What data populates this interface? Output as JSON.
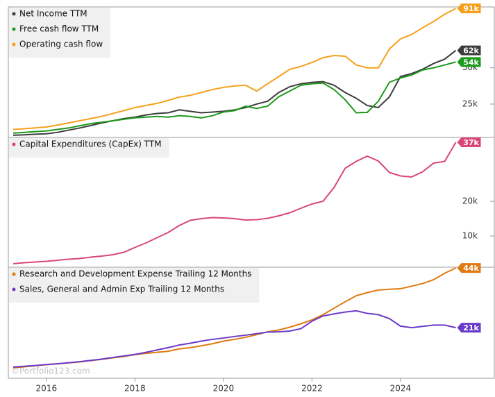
{
  "chart_data": [
    {
      "type": "line",
      "x": [
        2015.25,
        2015.5,
        2015.75,
        2016,
        2016.25,
        2016.5,
        2016.75,
        2017,
        2017.25,
        2017.5,
        2017.75,
        2018,
        2018.25,
        2018.5,
        2018.75,
        2019,
        2019.25,
        2019.5,
        2019.75,
        2020,
        2020.25,
        2020.5,
        2020.75,
        2021,
        2021.25,
        2021.5,
        2021.75,
        2022,
        2022.25,
        2022.5,
        2022.75,
        2023,
        2023.25,
        2023.5,
        2023.75,
        2024,
        2024.25,
        2024.5,
        2024.75,
        2025,
        2025.25
      ],
      "xlim": [
        2015.14,
        2026.12
      ],
      "ylim": [
        2000,
        92000
      ],
      "yticks": [
        {
          "value": 25000,
          "label": "25k"
        },
        {
          "value": 50000,
          "label": "50k"
        }
      ],
      "series": [
        {
          "name": "Net Income TTM",
          "color": "#3c3c3c",
          "values": [
            3500,
            3800,
            4200,
            4500,
            5500,
            7000,
            8500,
            10200,
            12000,
            13500,
            15000,
            16000,
            17500,
            18500,
            19000,
            21000,
            20000,
            19000,
            19500,
            20000,
            21000,
            22600,
            25000,
            27000,
            33000,
            37000,
            39000,
            40000,
            40500,
            38000,
            33000,
            29000,
            24000,
            22600,
            30000,
            44000,
            46000,
            49000,
            53000,
            56000,
            62000
          ],
          "value_labels": [
            null,
            null,
            null,
            null,
            null,
            null,
            null,
            null,
            null,
            null,
            null,
            null,
            null,
            null,
            null,
            null,
            null,
            null,
            null,
            null,
            null,
            null,
            null,
            null,
            null,
            null,
            null,
            null,
            null,
            null,
            null,
            null,
            null,
            null,
            null,
            null,
            null,
            null,
            null,
            null,
            "62k"
          ]
        },
        {
          "name": "Free cash flow TTM",
          "color": "#1c9a1c",
          "values": [
            5000,
            5500,
            6000,
            6500,
            7500,
            8500,
            10000,
            11500,
            12500,
            13500,
            14500,
            15500,
            16000,
            16500,
            16000,
            17000,
            16500,
            15500,
            17000,
            19500,
            20500,
            23500,
            22000,
            23600,
            30000,
            34000,
            38000,
            39000,
            39500,
            35000,
            28000,
            19000,
            19300,
            27000,
            40000,
            43000,
            45000,
            48500,
            50000,
            52000,
            54000
          ],
          "value_labels": [
            null,
            null,
            null,
            null,
            null,
            null,
            null,
            null,
            null,
            null,
            null,
            null,
            null,
            null,
            null,
            null,
            null,
            null,
            null,
            null,
            null,
            null,
            null,
            null,
            null,
            null,
            null,
            null,
            null,
            null,
            null,
            null,
            null,
            null,
            null,
            null,
            null,
            null,
            null,
            null,
            "54k"
          ]
        },
        {
          "name": "Operating cash flow",
          "color": "#f5a01a",
          "values": [
            7500,
            8000,
            8600,
            9200,
            10500,
            12000,
            13500,
            15000,
            16500,
            18500,
            20500,
            22600,
            24000,
            25500,
            27500,
            29800,
            31000,
            33000,
            35000,
            36500,
            37500,
            38000,
            34000,
            39000,
            44000,
            49000,
            51000,
            53700,
            57000,
            58500,
            58000,
            52000,
            50000,
            50000,
            63000,
            70000,
            73000,
            77600,
            82000,
            87000,
            91000
          ],
          "value_labels": [
            null,
            null,
            null,
            null,
            null,
            null,
            null,
            null,
            null,
            null,
            null,
            null,
            null,
            null,
            null,
            null,
            null,
            null,
            null,
            null,
            null,
            null,
            null,
            null,
            null,
            null,
            null,
            null,
            null,
            null,
            null,
            null,
            null,
            null,
            null,
            null,
            null,
            null,
            null,
            null,
            "91k"
          ]
        }
      ]
    },
    {
      "type": "line",
      "x": [
        2015.25,
        2015.5,
        2015.75,
        2016,
        2016.25,
        2016.5,
        2016.75,
        2017,
        2017.25,
        2017.5,
        2017.75,
        2018,
        2018.25,
        2018.5,
        2018.75,
        2019,
        2019.25,
        2019.5,
        2019.75,
        2020,
        2020.25,
        2020.5,
        2020.75,
        2021,
        2021.25,
        2021.5,
        2021.75,
        2022,
        2022.25,
        2022.5,
        2022.75,
        2023,
        2023.25,
        2023.5,
        2023.75,
        2024,
        2024.25,
        2024.5,
        2024.75,
        2025,
        2025.25
      ],
      "xlim": [
        2015.14,
        2026.12
      ],
      "ylim": [
        1000,
        38400
      ],
      "yticks": [
        {
          "value": 10000,
          "label": "10k"
        },
        {
          "value": 20000,
          "label": "20k"
        }
      ],
      "series": [
        {
          "name": "Capital Expenditures (CapEx) TTM",
          "color": "#d9467a",
          "values": [
            2000,
            2300,
            2500,
            2700,
            3000,
            3300,
            3500,
            3900,
            4200,
            4600,
            5300,
            6700,
            8000,
            9500,
            11000,
            13000,
            14500,
            15000,
            15300,
            15200,
            15000,
            14600,
            14700,
            15100,
            15800,
            16700,
            18000,
            19200,
            20000,
            24000,
            29500,
            31500,
            33000,
            31600,
            28300,
            27300,
            27000,
            28500,
            31000,
            31500,
            37000
          ],
          "value_labels": [
            null,
            null,
            null,
            null,
            null,
            null,
            null,
            null,
            null,
            null,
            null,
            null,
            null,
            null,
            null,
            null,
            null,
            null,
            null,
            null,
            null,
            null,
            null,
            null,
            null,
            null,
            null,
            null,
            null,
            null,
            null,
            null,
            null,
            null,
            null,
            null,
            null,
            null,
            null,
            null,
            "37k"
          ]
        }
      ]
    },
    {
      "type": "line",
      "x": [
        2015.25,
        2015.5,
        2015.75,
        2016,
        2016.25,
        2016.5,
        2016.75,
        2017,
        2017.25,
        2017.5,
        2017.75,
        2018,
        2018.25,
        2018.5,
        2018.75,
        2019,
        2019.25,
        2019.5,
        2019.75,
        2020,
        2020.25,
        2020.5,
        2020.75,
        2021,
        2021.25,
        2021.5,
        2021.75,
        2022,
        2022.25,
        2022.5,
        2022.75,
        2023,
        2023.25,
        2023.5,
        2023.75,
        2024,
        2024.25,
        2024.5,
        2024.75,
        2025,
        2025.25
      ],
      "xlim": [
        2015.14,
        2026.12
      ],
      "xticks": [
        2016,
        2018,
        2020,
        2022,
        2024
      ],
      "ylim": [
        1500,
        44300
      ],
      "watermark": "©Portfolio123.com",
      "series": [
        {
          "name": "Research and Development Expense Trailing 12 Months",
          "color": "#e07a10",
          "values": [
            5500,
            5900,
            6300,
            6700,
            7100,
            7400,
            7800,
            8300,
            8800,
            9400,
            9900,
            10600,
            11100,
            11500,
            11900,
            12800,
            13300,
            14000,
            14800,
            15800,
            16500,
            17300,
            18300,
            19400,
            20100,
            21200,
            22500,
            24000,
            26000,
            28500,
            31000,
            33300,
            34500,
            35500,
            35800,
            36000,
            37000,
            38000,
            39500,
            42000,
            44000
          ],
          "value_labels": [
            null,
            null,
            null,
            null,
            null,
            null,
            null,
            null,
            null,
            null,
            null,
            null,
            null,
            null,
            null,
            null,
            null,
            null,
            null,
            null,
            null,
            null,
            null,
            null,
            null,
            null,
            null,
            null,
            null,
            null,
            null,
            null,
            null,
            null,
            null,
            null,
            null,
            null,
            null,
            null,
            "44k"
          ]
        },
        {
          "name": "Sales, General and Admin Exp Trailing 12 Months",
          "color": "#6a3ac8",
          "values": [
            5800,
            6100,
            6400,
            6800,
            7100,
            7500,
            7900,
            8400,
            8900,
            9500,
            10100,
            10700,
            11500,
            12400,
            13300,
            14300,
            15000,
            15800,
            16500,
            17000,
            17600,
            18100,
            18700,
            19300,
            19400,
            19700,
            20600,
            23500,
            25500,
            26300,
            27000,
            27500,
            26500,
            26000,
            24500,
            21600,
            21000,
            21500,
            22000,
            22000,
            21000
          ],
          "value_labels": [
            null,
            null,
            null,
            null,
            null,
            null,
            null,
            null,
            null,
            null,
            null,
            null,
            null,
            null,
            null,
            null,
            null,
            null,
            null,
            null,
            null,
            null,
            null,
            null,
            null,
            null,
            null,
            null,
            null,
            null,
            null,
            null,
            null,
            null,
            null,
            null,
            null,
            null,
            null,
            null,
            "21k"
          ]
        }
      ]
    }
  ]
}
